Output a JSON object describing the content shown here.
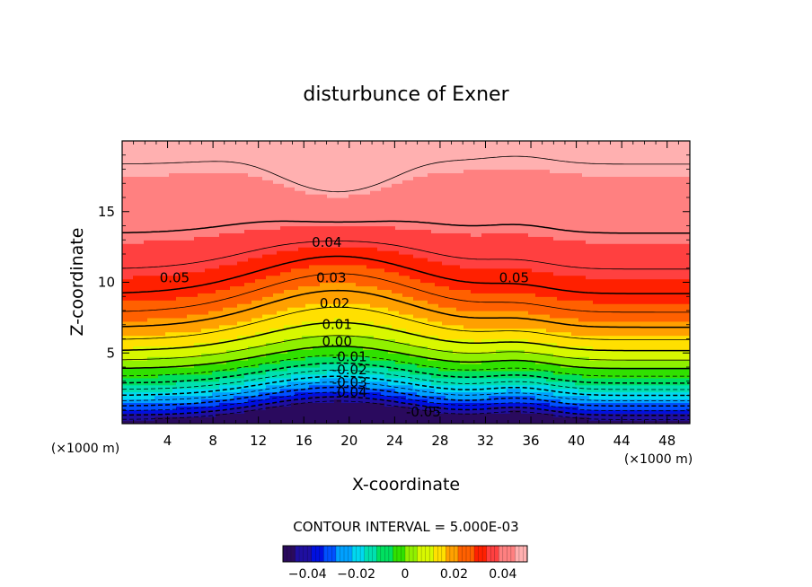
{
  "chart_data": {
    "type": "contour",
    "title": "disturbunce of Exner",
    "xlabel": "X-coordinate",
    "ylabel": "Z-coordinate",
    "x_unit_left": "(×1000 m)",
    "x_unit_right": "(×1000 m)",
    "xlim": [
      0,
      50
    ],
    "ylim": [
      0,
      20
    ],
    "xticks": [
      4,
      8,
      12,
      16,
      20,
      24,
      28,
      32,
      36,
      40,
      44,
      48
    ],
    "yticks": [
      5,
      10,
      15
    ],
    "contour_interval_text": "CONTOUR INTERVAL = 5.000E-03",
    "contour_interval": 0.005,
    "value_range": [
      -0.05,
      0.05
    ],
    "contour_labels": [
      {
        "text": "0.05",
        "x": 3.3,
        "y": 10.0
      },
      {
        "text": "0.05",
        "x": 33.2,
        "y": 10.0
      },
      {
        "text": "0.04",
        "x": 16.7,
        "y": 12.5
      },
      {
        "text": "0.03",
        "x": 17.1,
        "y": 10.0
      },
      {
        "text": "0.02",
        "x": 17.4,
        "y": 8.2
      },
      {
        "text": "0.01",
        "x": 17.6,
        "y": 6.7
      },
      {
        "text": "0.00",
        "x": 17.6,
        "y": 5.5
      },
      {
        "text": "-0.01",
        "x": 18.5,
        "y": 4.4
      },
      {
        "text": "-0.02",
        "x": 18.5,
        "y": 3.5
      },
      {
        "text": "-0.03",
        "x": 18.5,
        "y": 2.6
      },
      {
        "text": "-0.04",
        "x": 18.5,
        "y": 1.9
      },
      {
        "text": "-0.05",
        "x": 25.0,
        "y": 0.5
      }
    ],
    "colorbar": {
      "ticks": [
        {
          "value": -0.04,
          "label": "−0.04"
        },
        {
          "value": -0.02,
          "label": "−0.02"
        },
        {
          "value": 0,
          "label": "0"
        },
        {
          "value": 0.02,
          "label": "0.02"
        },
        {
          "value": 0.04,
          "label": "0.04"
        }
      ],
      "colors": [
        "#2a0a5e",
        "#1f0fa0",
        "#0010e0",
        "#0050ff",
        "#00a0ff",
        "#00d8f0",
        "#00e0b0",
        "#00e060",
        "#30e000",
        "#90f000",
        "#d8f800",
        "#ffe000",
        "#ffa000",
        "#ff6000",
        "#ff2000",
        "#ff4040",
        "#ff8080",
        "#ffb0b0"
      ]
    }
  }
}
